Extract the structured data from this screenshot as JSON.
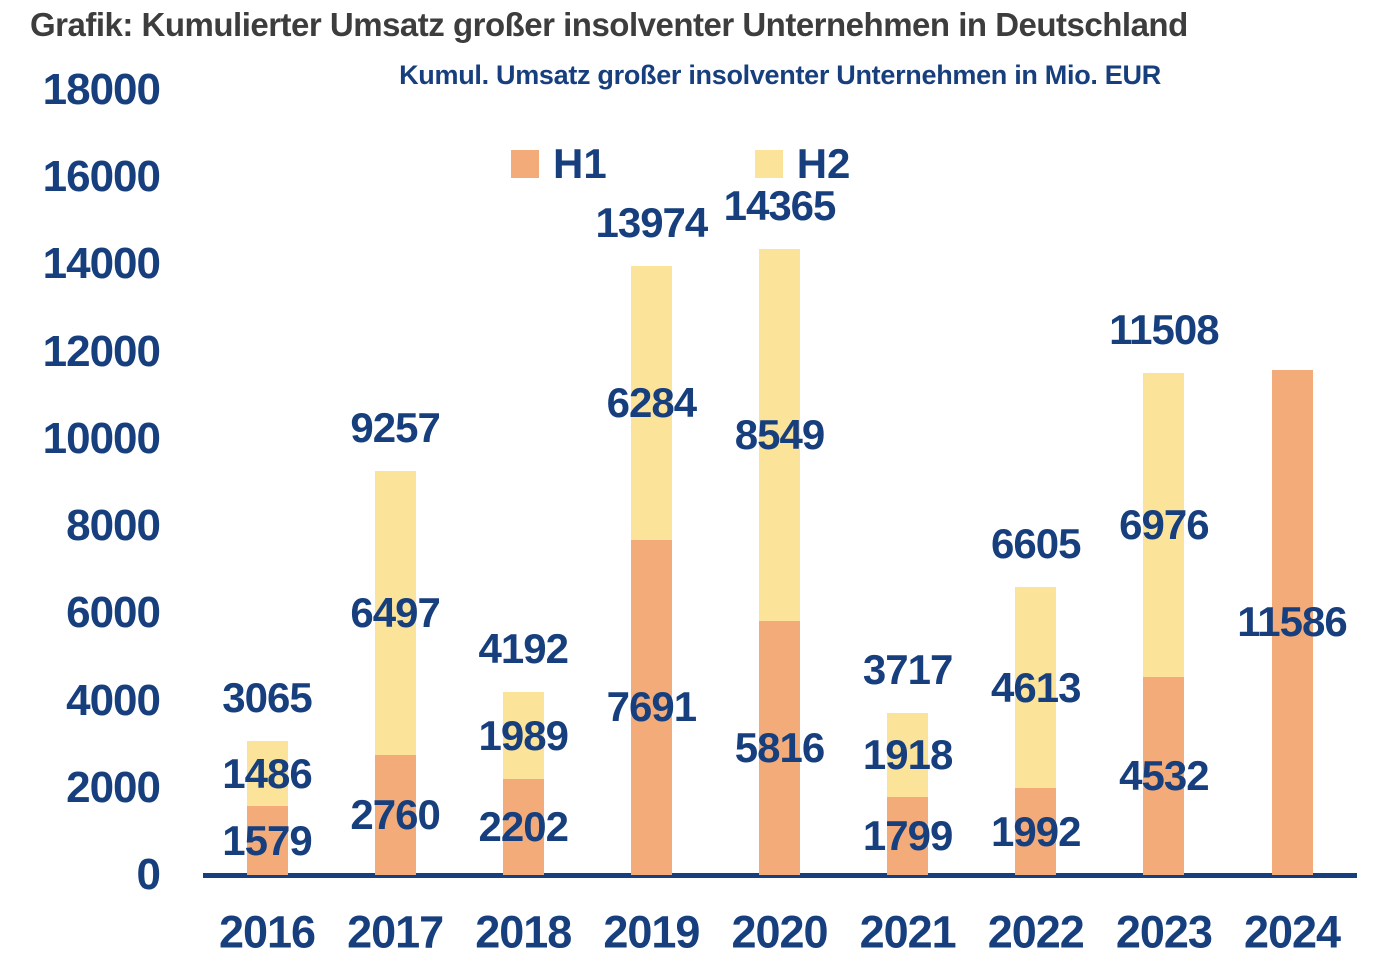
{
  "page_title": "Grafik: Kumulierter Umsatz großer insolventer Unternehmen in Deutschland",
  "colors": {
    "navy_text": "#173f7e",
    "title_gray": "#3d3d3d",
    "h1_orange": "#f2ab79",
    "h2_yellow": "#fbe39a",
    "background": "#ffffff"
  },
  "chart_data": {
    "type": "bar",
    "stacked": true,
    "title": "Kumul. Umsatz großer insolventer Unternehmen in Mio. EUR",
    "categories": [
      "2016",
      "2017",
      "2018",
      "2019",
      "2020",
      "2021",
      "2022",
      "2023",
      "2024"
    ],
    "series": [
      {
        "name": "H1",
        "color": "#f2ab79",
        "values": [
          1579,
          2760,
          2202,
          7691,
          5816,
          1799,
          1992,
          4532,
          11586
        ]
      },
      {
        "name": "H2",
        "color": "#fbe39a",
        "values": [
          1486,
          6497,
          1989,
          6284,
          8549,
          1918,
          4613,
          6976,
          null
        ]
      }
    ],
    "totals": [
      3065,
      9257,
      4192,
      13974,
      14365,
      3717,
      6605,
      11508,
      null
    ],
    "y_ticks": [
      0,
      2000,
      4000,
      6000,
      8000,
      10000,
      12000,
      14000,
      16000,
      18000
    ],
    "ylim": [
      0,
      18000
    ],
    "grid": false,
    "legend_position": "top-center"
  }
}
